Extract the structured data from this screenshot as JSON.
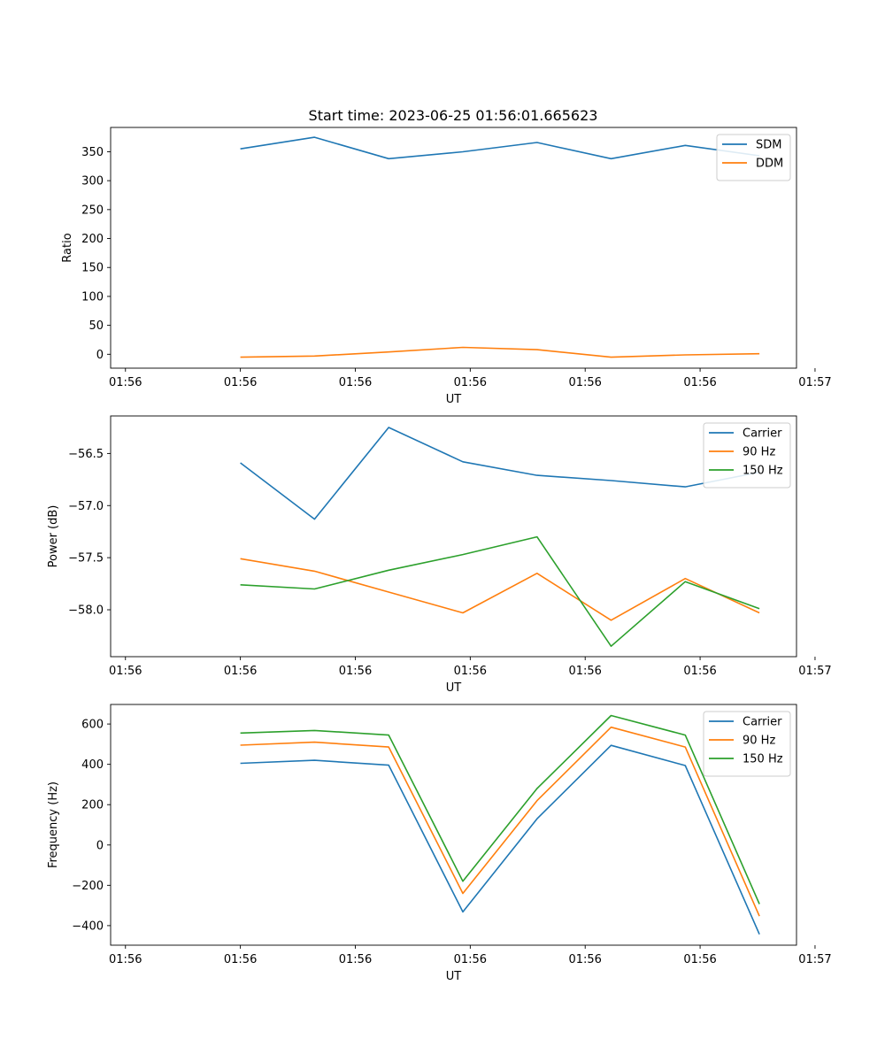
{
  "figure_title": "Start time: 2023-06-25 01:56:01.665623",
  "colors": {
    "blue": "#1f77b4",
    "orange": "#ff7f0e",
    "green": "#2ca02c"
  },
  "chart_data": [
    {
      "type": "line",
      "title": "Start time: 2023-06-25 01:56:01.665623",
      "xlabel": "UT",
      "ylabel": "Ratio",
      "x": [
        1,
        2,
        3,
        4,
        5,
        6,
        7,
        8
      ],
      "xlim": [
        -0.75,
        8.5
      ],
      "x_ticks": [
        -0.55,
        1.0,
        2.55,
        4.1,
        5.65,
        7.2,
        8.75
      ],
      "x_tick_labels": [
        "01:56",
        "01:56",
        "01:56",
        "01:56",
        "01:56",
        "01:56",
        "01:57"
      ],
      "ylim": [
        -24,
        392
      ],
      "y_ticks": [
        0,
        50,
        100,
        150,
        200,
        250,
        300,
        350
      ],
      "y_tick_labels": [
        "0",
        "50",
        "100",
        "150",
        "200",
        "250",
        "300",
        "350"
      ],
      "legend_position": "top-right",
      "series": [
        {
          "name": "SDM",
          "color": "#1f77b4",
          "values": [
            355,
            375,
            338,
            350,
            366,
            338,
            361,
            343
          ]
        },
        {
          "name": "DDM",
          "color": "#ff7f0e",
          "values": [
            -5,
            -3,
            4,
            12,
            8,
            -5,
            -1,
            1
          ]
        }
      ]
    },
    {
      "type": "line",
      "title": "",
      "xlabel": "UT",
      "ylabel": "Power (dB)",
      "x": [
        1,
        2,
        3,
        4,
        5,
        6,
        7,
        8
      ],
      "xlim": [
        -0.75,
        8.5
      ],
      "x_ticks": [
        -0.55,
        1.0,
        2.55,
        4.1,
        5.65,
        7.2,
        8.75
      ],
      "x_tick_labels": [
        "01:56",
        "01:56",
        "01:56",
        "01:56",
        "01:56",
        "01:56",
        "01:57"
      ],
      "ylim": [
        -58.45,
        -56.14
      ],
      "y_ticks": [
        -58.0,
        -57.5,
        -57.0,
        -56.5
      ],
      "y_tick_labels": [
        "−58.0",
        "−57.5",
        "−57.0",
        "−56.5"
      ],
      "legend_position": "top-right",
      "series": [
        {
          "name": "Carrier",
          "color": "#1f77b4",
          "values": [
            -56.59,
            -57.13,
            -56.25,
            -56.58,
            -56.71,
            -56.76,
            -56.82,
            -56.68
          ]
        },
        {
          "name": "90 Hz",
          "color": "#ff7f0e",
          "values": [
            -57.51,
            -57.63,
            -57.83,
            -58.03,
            -57.65,
            -58.1,
            -57.7,
            -58.03
          ]
        },
        {
          "name": "150 Hz",
          "color": "#2ca02c",
          "values": [
            -57.76,
            -57.8,
            -57.62,
            -57.47,
            -57.3,
            -58.35,
            -57.73,
            -57.99
          ]
        }
      ]
    },
    {
      "type": "line",
      "title": "",
      "xlabel": "UT",
      "ylabel": "Frequency (Hz)",
      "x": [
        1,
        2,
        3,
        4,
        5,
        6,
        7,
        8
      ],
      "xlim": [
        -0.75,
        8.5
      ],
      "x_ticks": [
        -0.55,
        1.0,
        2.55,
        4.1,
        5.65,
        7.2,
        8.75
      ],
      "x_tick_labels": [
        "01:56",
        "01:56",
        "01:56",
        "01:56",
        "01:56",
        "01:56",
        "01:57"
      ],
      "ylim": [
        -497,
        697
      ],
      "y_ticks": [
        -400,
        -200,
        0,
        200,
        400,
        600
      ],
      "y_tick_labels": [
        "−400",
        "−200",
        "0",
        "200",
        "400",
        "600"
      ],
      "legend_position": "top-right",
      "series": [
        {
          "name": "Carrier",
          "color": "#1f77b4",
          "values": [
            405,
            420,
            396,
            -332,
            130,
            494,
            394,
            -443
          ]
        },
        {
          "name": "90 Hz",
          "color": "#ff7f0e",
          "values": [
            495,
            510,
            486,
            -240,
            220,
            584,
            486,
            -353
          ]
        },
        {
          "name": "150 Hz",
          "color": "#2ca02c",
          "values": [
            555,
            568,
            545,
            -180,
            280,
            642,
            545,
            -293
          ]
        }
      ]
    }
  ]
}
